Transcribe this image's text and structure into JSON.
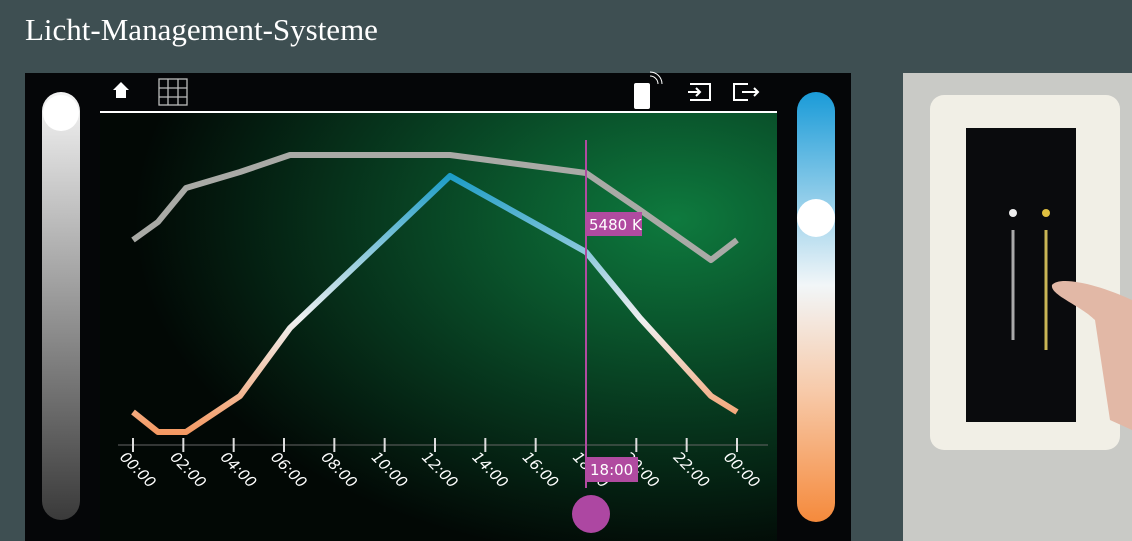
{
  "header": {
    "title": "Licht-Management-Systeme"
  },
  "screen": {
    "time_labels": [
      "00:00",
      "02:00",
      "04:00",
      "06:00",
      "08:00",
      "10:00",
      "12:00",
      "14:00",
      "16:00",
      "18:00",
      "20:00",
      "22:00",
      "00:00"
    ],
    "cursor_value": "5480 K",
    "cursor_time": "18:00"
  }
}
